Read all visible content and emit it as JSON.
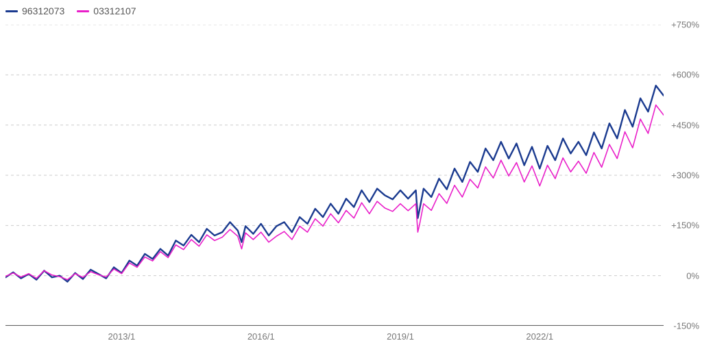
{
  "chart": {
    "type": "line",
    "background_color": "#ffffff",
    "grid_color": "#cccccc",
    "grid_dash": "4,4",
    "axis_color": "#666666",
    "label_color": "#777777",
    "label_fontsize": 13,
    "legend_fontsize": 14,
    "y": {
      "min": -150,
      "max": 750,
      "ticks": [
        -150,
        0,
        150,
        300,
        450,
        600,
        750
      ],
      "tick_labels": [
        "-150%",
        "0%",
        "+150%",
        "+300%",
        "+450%",
        "+600%",
        "+750%"
      ]
    },
    "x": {
      "min": 0,
      "max": 170,
      "ticks": [
        30,
        66,
        102,
        138
      ],
      "tick_labels": [
        "2013/1",
        "2016/1",
        "2019/1",
        "2022/1"
      ]
    },
    "series": [
      {
        "id": "96312073",
        "label": "96312073",
        "color": "#1a3a8f",
        "stroke_width": 2.4,
        "data": [
          [
            0,
            -5
          ],
          [
            2,
            10
          ],
          [
            4,
            -8
          ],
          [
            6,
            5
          ],
          [
            8,
            -12
          ],
          [
            10,
            15
          ],
          [
            12,
            -5
          ],
          [
            14,
            0
          ],
          [
            16,
            -18
          ],
          [
            18,
            8
          ],
          [
            20,
            -10
          ],
          [
            22,
            18
          ],
          [
            24,
            5
          ],
          [
            26,
            -8
          ],
          [
            28,
            25
          ],
          [
            30,
            8
          ],
          [
            32,
            45
          ],
          [
            34,
            30
          ],
          [
            36,
            65
          ],
          [
            38,
            50
          ],
          [
            40,
            80
          ],
          [
            42,
            60
          ],
          [
            44,
            105
          ],
          [
            46,
            90
          ],
          [
            48,
            122
          ],
          [
            50,
            100
          ],
          [
            52,
            140
          ],
          [
            54,
            120
          ],
          [
            56,
            130
          ],
          [
            58,
            160
          ],
          [
            60,
            135
          ],
          [
            61,
            100
          ],
          [
            62,
            148
          ],
          [
            64,
            125
          ],
          [
            66,
            155
          ],
          [
            68,
            120
          ],
          [
            70,
            148
          ],
          [
            72,
            160
          ],
          [
            74,
            130
          ],
          [
            76,
            175
          ],
          [
            78,
            155
          ],
          [
            80,
            200
          ],
          [
            82,
            175
          ],
          [
            84,
            215
          ],
          [
            86,
            185
          ],
          [
            88,
            230
          ],
          [
            90,
            205
          ],
          [
            92,
            255
          ],
          [
            94,
            220
          ],
          [
            96,
            260
          ],
          [
            98,
            240
          ],
          [
            100,
            228
          ],
          [
            102,
            255
          ],
          [
            104,
            230
          ],
          [
            106,
            255
          ],
          [
            106.5,
            172
          ],
          [
            107,
            200
          ],
          [
            108,
            260
          ],
          [
            110,
            235
          ],
          [
            112,
            290
          ],
          [
            114,
            258
          ],
          [
            116,
            320
          ],
          [
            118,
            280
          ],
          [
            120,
            340
          ],
          [
            122,
            310
          ],
          [
            124,
            380
          ],
          [
            126,
            345
          ],
          [
            128,
            400
          ],
          [
            130,
            350
          ],
          [
            132,
            395
          ],
          [
            134,
            330
          ],
          [
            136,
            385
          ],
          [
            138,
            320
          ],
          [
            140,
            388
          ],
          [
            142,
            345
          ],
          [
            144,
            410
          ],
          [
            146,
            365
          ],
          [
            148,
            400
          ],
          [
            150,
            360
          ],
          [
            152,
            428
          ],
          [
            154,
            380
          ],
          [
            156,
            455
          ],
          [
            158,
            410
          ],
          [
            160,
            495
          ],
          [
            162,
            445
          ],
          [
            164,
            530
          ],
          [
            166,
            490
          ],
          [
            168,
            568
          ],
          [
            170,
            538
          ]
        ]
      },
      {
        "id": "03312107",
        "label": "03312107",
        "color": "#e91ec9",
        "stroke_width": 1.6,
        "data": [
          [
            0,
            -2
          ],
          [
            2,
            8
          ],
          [
            4,
            -4
          ],
          [
            6,
            6
          ],
          [
            8,
            -8
          ],
          [
            10,
            15
          ],
          [
            12,
            2
          ],
          [
            14,
            -3
          ],
          [
            16,
            -12
          ],
          [
            18,
            6
          ],
          [
            20,
            -5
          ],
          [
            22,
            12
          ],
          [
            24,
            3
          ],
          [
            26,
            -4
          ],
          [
            28,
            20
          ],
          [
            30,
            6
          ],
          [
            32,
            38
          ],
          [
            34,
            25
          ],
          [
            36,
            56
          ],
          [
            38,
            44
          ],
          [
            40,
            72
          ],
          [
            42,
            54
          ],
          [
            44,
            92
          ],
          [
            46,
            78
          ],
          [
            48,
            108
          ],
          [
            50,
            88
          ],
          [
            52,
            122
          ],
          [
            54,
            105
          ],
          [
            56,
            115
          ],
          [
            58,
            138
          ],
          [
            60,
            118
          ],
          [
            61,
            80
          ],
          [
            62,
            128
          ],
          [
            64,
            108
          ],
          [
            66,
            130
          ],
          [
            68,
            100
          ],
          [
            70,
            118
          ],
          [
            72,
            132
          ],
          [
            74,
            108
          ],
          [
            76,
            148
          ],
          [
            78,
            130
          ],
          [
            80,
            170
          ],
          [
            82,
            148
          ],
          [
            84,
            185
          ],
          [
            86,
            158
          ],
          [
            88,
            195
          ],
          [
            90,
            172
          ],
          [
            92,
            218
          ],
          [
            94,
            185
          ],
          [
            96,
            222
          ],
          [
            98,
            202
          ],
          [
            100,
            192
          ],
          [
            102,
            215
          ],
          [
            104,
            194
          ],
          [
            106,
            215
          ],
          [
            106.5,
            130
          ],
          [
            107,
            155
          ],
          [
            108,
            215
          ],
          [
            110,
            195
          ],
          [
            112,
            245
          ],
          [
            114,
            216
          ],
          [
            116,
            270
          ],
          [
            118,
            235
          ],
          [
            120,
            288
          ],
          [
            122,
            262
          ],
          [
            124,
            325
          ],
          [
            126,
            292
          ],
          [
            128,
            345
          ],
          [
            130,
            298
          ],
          [
            132,
            338
          ],
          [
            134,
            280
          ],
          [
            136,
            328
          ],
          [
            138,
            268
          ],
          [
            140,
            330
          ],
          [
            142,
            290
          ],
          [
            144,
            352
          ],
          [
            146,
            310
          ],
          [
            148,
            342
          ],
          [
            150,
            306
          ],
          [
            152,
            368
          ],
          [
            154,
            324
          ],
          [
            156,
            392
          ],
          [
            158,
            350
          ],
          [
            160,
            430
          ],
          [
            162,
            382
          ],
          [
            164,
            468
          ],
          [
            166,
            425
          ],
          [
            168,
            510
          ],
          [
            170,
            480
          ]
        ]
      }
    ]
  }
}
